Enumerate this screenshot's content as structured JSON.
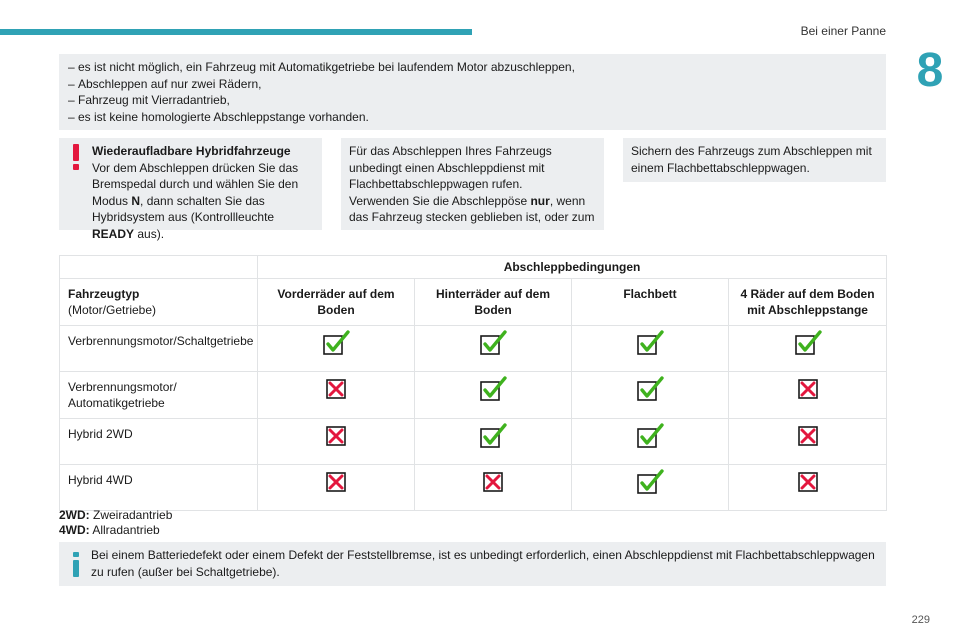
{
  "header": {
    "section": "Bei einer Panne",
    "chapter": "8"
  },
  "intro_list": [
    "es ist nicht möglich, ein Fahrzeug mit Automatikgetriebe bei laufendem Motor abzuschleppen,",
    "Abschleppen auf nur zwei Rädern,",
    "Fahrzeug mit Vierradantrieb,",
    "es ist keine homologierte Abschleppstange vorhanden."
  ],
  "warning": {
    "title": "Wiederaufladbare Hybridfahrzeuge",
    "t1": "Vor dem Abschleppen drücken Sie das Bremspedal durch und wählen Sie den Modus ",
    "b1": "N",
    "t2": ", dann schalten Sie das Hybridsystem aus (Kontrollleuchte ",
    "b2": "READY",
    "t3": " aus)."
  },
  "middle": {
    "p1": "Für das Abschleppen Ihres Fahrzeugs unbedingt einen Abschleppdienst mit Flachbettabschleppwagen rufen.",
    "p2a": "Verwenden Sie die Abschleppöse ",
    "p2b": "nur",
    "p2c": ", wenn das Fahrzeug stecken geblieben ist, oder zum"
  },
  "right": {
    "p1": "Sichern des Fahrzeugs zum Abschleppen mit einem Flachbettabschleppwagen."
  },
  "table": {
    "title": "Abschleppbedingungen",
    "col0_title": "Fahrzeugtyp",
    "col0_sub": "(Motor/Getriebe)",
    "columns": [
      "Vorderräder auf dem Boden",
      "Hinterräder auf dem Boden",
      "Flachbett",
      "4 Räder auf dem Boden mit Abschleppstange"
    ],
    "rows": [
      {
        "label": "Verbrennungsmotor/Schaltgetriebe",
        "values": [
          "check",
          "check",
          "check",
          "check"
        ]
      },
      {
        "label": "Verbrennungsmotor/ Automatikgetriebe",
        "values": [
          "cross",
          "check",
          "check",
          "cross"
        ]
      },
      {
        "label": "Hybrid 2WD",
        "values": [
          "cross",
          "check",
          "check",
          "cross"
        ]
      },
      {
        "label": "Hybrid 4WD",
        "values": [
          "cross",
          "cross",
          "check",
          "cross"
        ]
      }
    ]
  },
  "legend": {
    "k1": "2WD:",
    "v1": " Zweiradantrieb",
    "k2": "4WD:",
    "v2": " Allradantrieb"
  },
  "info": "Bei einem Batteriedefekt oder einem Defekt der Feststellbremse, ist es unbedingt erforderlich, einen Abschleppdienst mit Flachbettabschleppwagen zu rufen (außer bei Schaltgetriebe).",
  "page": "229",
  "colors": {
    "accent": "#2fa2b5",
    "warning": "#e3173e",
    "check": "#3fb21e",
    "cross": "#e3173e"
  }
}
